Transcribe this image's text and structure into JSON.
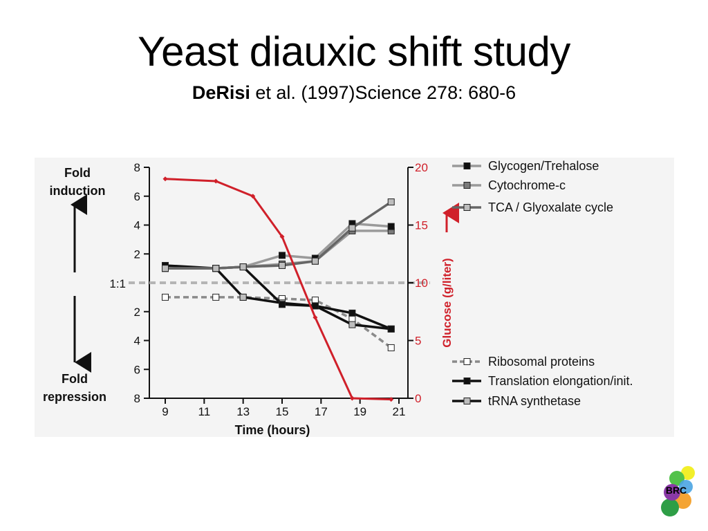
{
  "slide": {
    "title": "Yeast diauxic shift study",
    "subtitle_author": "DeRisi",
    "subtitle_rest": " et al. (1997)Science 278: 680-6"
  },
  "logo": {
    "text": "BRC"
  },
  "colors": {
    "glucose": "#d0202a",
    "black_series": "#111111",
    "dark_gray_series": "#666666",
    "light_gray_series": "#9a9a9a",
    "dashed_series": "#8a8a8a",
    "baseline": "#b5b5b5"
  },
  "chart_data": {
    "type": "line",
    "xlabel": "Time (hours)",
    "x_ticks": [
      9,
      11,
      13,
      15,
      17,
      19,
      21
    ],
    "xlim": [
      9,
      21
    ],
    "left_axis": {
      "ticks_upper": [
        "8",
        "6",
        "4",
        "2"
      ],
      "ticks_lower": [
        "2",
        "4",
        "6",
        "8"
      ],
      "baseline_label": "1:1",
      "top_label_lines": [
        "Fold",
        "induction"
      ],
      "bottom_label_lines": [
        "Fold",
        "repression"
      ],
      "scale": "signed fold, 1:1 at center",
      "ylim": [
        -8,
        8
      ]
    },
    "right_axis": {
      "label": "Glucose (g/liter)",
      "ticks": [
        "20",
        "15",
        "10",
        "5",
        "0"
      ],
      "ylim": [
        0,
        20
      ],
      "color": "#d0202a"
    },
    "glucose": {
      "x": [
        9,
        11.6,
        13.5,
        15,
        16.7,
        18.6,
        20.6
      ],
      "y": [
        19.0,
        18.8,
        17.5,
        14.0,
        7.0,
        0.0,
        -0.1
      ]
    },
    "series": [
      {
        "name": "Glycogen/Trehalose",
        "marker": "black",
        "line": "light",
        "dashed": false,
        "x": [
          9,
          11.6,
          13,
          15,
          16.7,
          18.6,
          20.6
        ],
        "y": [
          1,
          1,
          1.1,
          1.9,
          1.7,
          4.1,
          3.9
        ]
      },
      {
        "name": "Cytochrome-c",
        "marker": "gray",
        "line": "light",
        "dashed": false,
        "x": [
          9,
          11.6,
          13,
          15,
          16.7,
          18.6,
          20.6
        ],
        "y": [
          1,
          1,
          1.1,
          1.3,
          1.5,
          3.6,
          3.6
        ]
      },
      {
        "name": "TCA / Glyoxalate cycle",
        "marker": "light",
        "line": "dark",
        "dashed": false,
        "x": [
          9,
          11.6,
          13,
          15,
          16.7,
          18.6,
          20.6
        ],
        "y": [
          1,
          1,
          1.1,
          1.2,
          1.5,
          3.8,
          5.6
        ]
      },
      {
        "name": "Ribosomal proteins",
        "marker": "white",
        "line": "dashed",
        "dashed": true,
        "x": [
          9,
          11.6,
          13,
          15,
          16.7,
          18.6,
          20.6
        ],
        "y": [
          -1,
          -1,
          -1,
          -1.1,
          -1.2,
          -2.5,
          -4.5
        ]
      },
      {
        "name": "Translation elongation/init.",
        "marker": "black",
        "line": "black",
        "dashed": false,
        "x": [
          9,
          11.6,
          13,
          15,
          16.7,
          18.6,
          20.6
        ],
        "y": [
          1.2,
          1,
          1.1,
          -1.5,
          -1.6,
          -2.1,
          -3.2
        ]
      },
      {
        "name": "tRNA synthetase",
        "marker": "light",
        "line": "black",
        "dashed": false,
        "x": [
          9,
          11.6,
          13,
          15,
          16.7,
          18.6,
          20.6
        ],
        "y": [
          1,
          1,
          -1,
          -1.4,
          -1.6,
          -2.9,
          -3.2
        ]
      }
    ]
  }
}
